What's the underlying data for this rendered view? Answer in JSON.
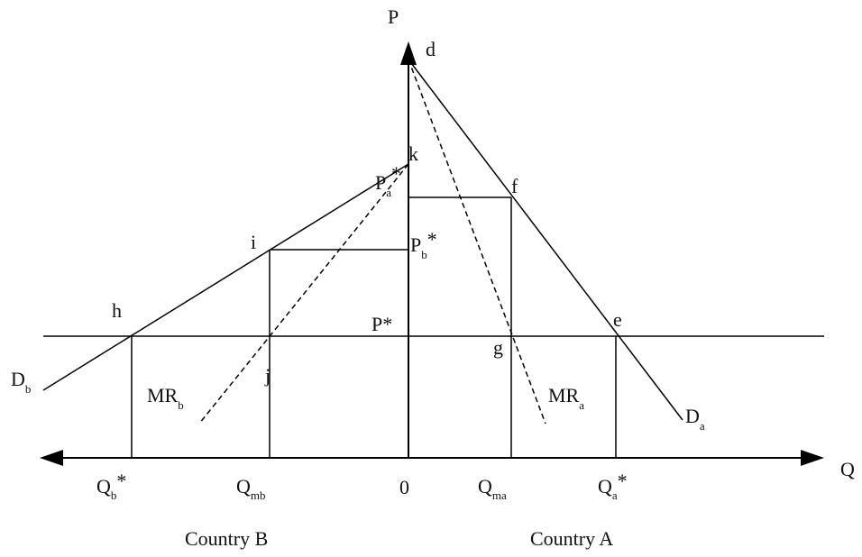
{
  "axes": {
    "price_axis": "P",
    "quantity_axis": "Q",
    "origin": "0"
  },
  "points": {
    "d": "d",
    "k": "k",
    "f": "f",
    "i": "i",
    "h": "h",
    "e": "e",
    "g": "g",
    "j": "j"
  },
  "prices": {
    "pa_star": {
      "base": "P",
      "sub": "a",
      "sup": "*"
    },
    "pb_star": {
      "base": "P",
      "sub": "b",
      "sup": "*"
    },
    "p_star": "P*"
  },
  "curves": {
    "db": {
      "base": "D",
      "sub": "b"
    },
    "da": {
      "base": "D",
      "sub": "a"
    },
    "mrb": {
      "base": "MR",
      "sub": "b"
    },
    "mra": {
      "base": "MR",
      "sub": "a"
    }
  },
  "quantities": {
    "qb_star": {
      "base": "Q",
      "sub": "b",
      "sup": "*"
    },
    "qmb": {
      "base": "Q",
      "sub": "mb"
    },
    "qma": {
      "base": "Q",
      "sub": "ma"
    },
    "qa_star": {
      "base": "Q",
      "sub": "a",
      "sup": "*"
    }
  },
  "countries": {
    "b": "Country B",
    "a": "Country A"
  }
}
